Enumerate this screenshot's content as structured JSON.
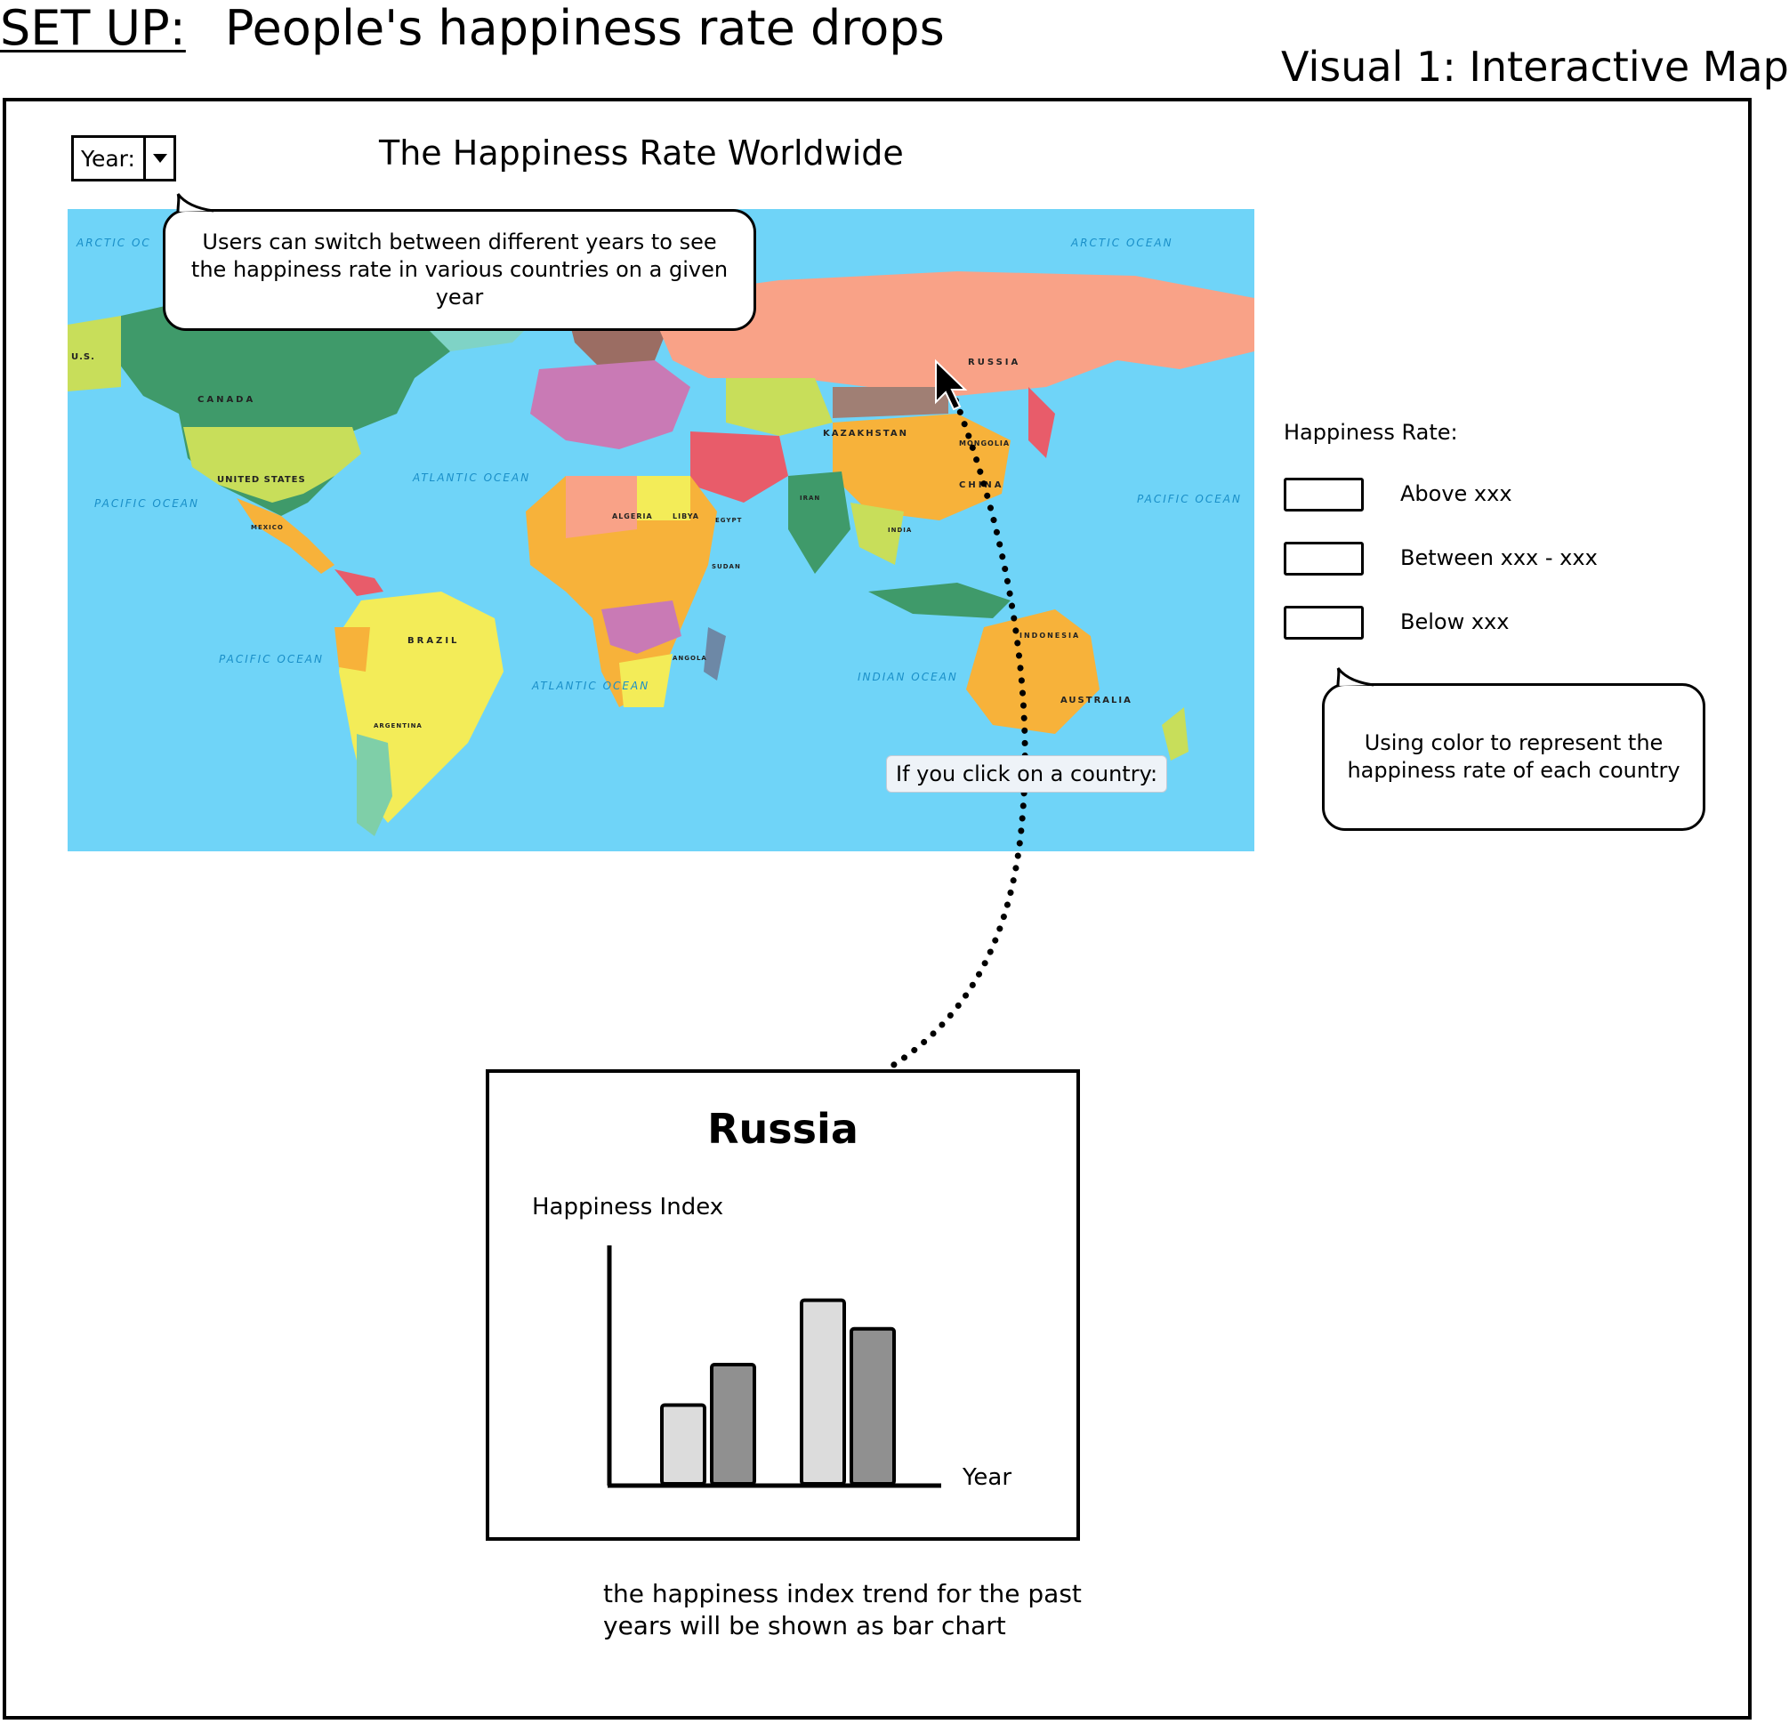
{
  "header": {
    "setup_label": "SET UP:",
    "setup_text": "People's happiness rate drops",
    "visual_label": "Visual 1: Interactive Map"
  },
  "controls": {
    "year_label": "Year:",
    "dropdown_icon": "chevron-down-icon"
  },
  "map": {
    "title": "The Happiness Rate Worldwide",
    "country_labels": [
      "RUSSIA",
      "CANADA",
      "UNITED STATES",
      "U.S.",
      "BRAZIL",
      "CHINA",
      "KAZAKHSTAN",
      "MONGOLIA",
      "AUSTRALIA",
      "INDONESIA",
      "ALGERIA",
      "LIBYA",
      "EGYPT",
      "SUDAN",
      "INDIA",
      "ARGENTINA",
      "MEXICO",
      "ANGOLA",
      "IRAN"
    ],
    "ocean_labels": [
      "ARCTIC OCEAN",
      "ARCTIC OC",
      "ATLANTIC OCEAN",
      "PACIFIC OCEAN",
      "INDIAN OCEAN",
      "PACIFIC OCEAN",
      "ATLANTIC OCEAN",
      "PACIFIC OCEAN"
    ],
    "click_label": "If you click on a country:"
  },
  "annotations": {
    "year_tip": "Users can switch between different years to see the happiness rate in various countries on a given year",
    "color_tip": "Using color to represent the happiness rate of each country"
  },
  "legend": {
    "title": "Happiness Rate:",
    "items": [
      {
        "label": "Above xxx"
      },
      {
        "label": "Between xxx - xxx"
      },
      {
        "label": "Below xxx"
      }
    ]
  },
  "popup": {
    "country": "Russia",
    "y_label": "Happiness Index",
    "x_label": "Year"
  },
  "chart_data": {
    "type": "bar",
    "title": "Russia",
    "ylabel": "Happiness Index",
    "xlabel": "Year",
    "categories": [
      "",
      "",
      "",
      ""
    ],
    "values": [
      33,
      50,
      77,
      65
    ],
    "ylim": [
      0,
      100
    ],
    "bar_colors": [
      "#dcdcdc",
      "#909090",
      "#dcdcdc",
      "#909090"
    ],
    "grid": false
  },
  "footer": {
    "note": "the happiness index trend for the past years will be shown as bar chart"
  }
}
